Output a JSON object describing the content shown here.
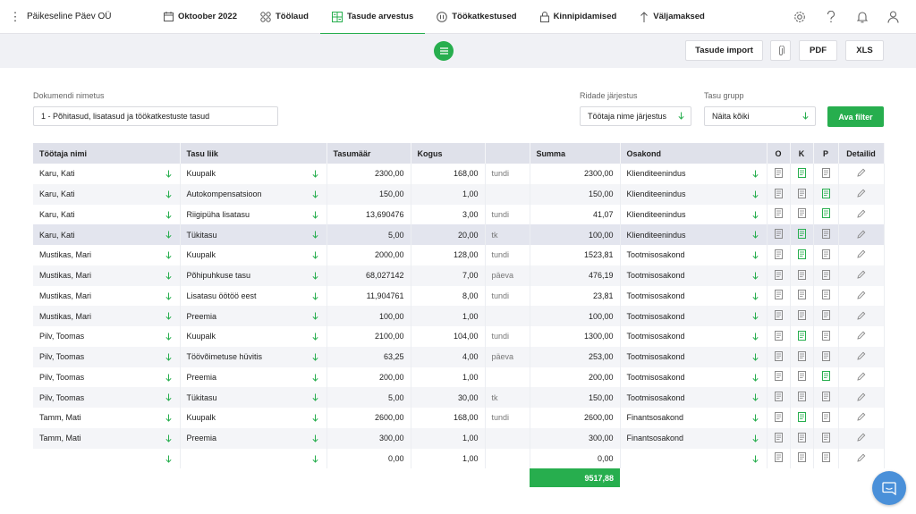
{
  "company": "Päikeseline Päev OÜ",
  "nav": [
    {
      "label": "Oktoober 2022",
      "icon": "calendar-icon"
    },
    {
      "label": "Töölaud",
      "icon": "dashboard-icon"
    },
    {
      "label": "Tasude arvestus",
      "icon": "calculator-icon",
      "active": true
    },
    {
      "label": "Töökatkestused",
      "icon": "pause-icon"
    },
    {
      "label": "Kinnipidamised",
      "icon": "lock-icon"
    },
    {
      "label": "Väljamaksed",
      "icon": "arrow-up-icon"
    }
  ],
  "top_icons": [
    "gear-icon",
    "help-icon",
    "bell-icon",
    "user-icon"
  ],
  "toolbar": {
    "import_label": "Tasude import",
    "pdf_label": "PDF",
    "xls_label": "XLS"
  },
  "filters": {
    "doc_name_label": "Dokumendi nimetus",
    "doc_name_value": "1 - Põhitasud, lisatasud ja töökatkestuste tasud",
    "order_label": "Ridade järjestus",
    "order_value": "Töötaja nime järjestus",
    "group_label": "Tasu grupp",
    "group_value": "Näita kõiki",
    "filter_button": "Ava filter"
  },
  "table": {
    "headers": {
      "employee": "Töötaja nimi",
      "type": "Tasu liik",
      "rate": "Tasumäär",
      "qty": "Kogus",
      "unit": "",
      "sum": "Summa",
      "dept": "Osakond",
      "o": "O",
      "k": "K",
      "p": "P",
      "details": "Detailid"
    },
    "rows": [
      {
        "employee": "Karu, Kati",
        "type": "Kuupalk",
        "rate": "2300,00",
        "qty": "168,00",
        "unit": "tundi",
        "sum": "2300,00",
        "dept": "Klienditeenindus",
        "o": false,
        "k": true,
        "p": false
      },
      {
        "employee": "Karu, Kati",
        "type": "Autokompensatsioon",
        "rate": "150,00",
        "qty": "1,00",
        "unit": "",
        "sum": "150,00",
        "dept": "Klienditeenindus",
        "o": false,
        "k": false,
        "p": true
      },
      {
        "employee": "Karu, Kati",
        "type": "Riigipüha lisatasu",
        "rate": "13,690476",
        "qty": "3,00",
        "unit": "tundi",
        "sum": "41,07",
        "dept": "Klienditeenindus",
        "o": false,
        "k": false,
        "p": true
      },
      {
        "employee": "Karu, Kati",
        "type": "Tükitasu",
        "rate": "5,00",
        "qty": "20,00",
        "unit": "tk",
        "sum": "100,00",
        "dept": "Klienditeenindus",
        "o": false,
        "k": true,
        "p": false,
        "selected": true
      },
      {
        "employee": "Mustikas, Mari",
        "type": "Kuupalk",
        "rate": "2000,00",
        "qty": "128,00",
        "unit": "tundi",
        "sum": "1523,81",
        "dept": "Tootmisosakond",
        "o": false,
        "k": true,
        "p": false
      },
      {
        "employee": "Mustikas, Mari",
        "type": "Põhipuhkuse tasu",
        "rate": "68,027142",
        "qty": "7,00",
        "unit": "päeva",
        "sum": "476,19",
        "dept": "Tootmisosakond",
        "o": false,
        "k": false,
        "p": false
      },
      {
        "employee": "Mustikas, Mari",
        "type": "Lisatasu öötöö eest",
        "rate": "11,904761",
        "qty": "8,00",
        "unit": "tundi",
        "sum": "23,81",
        "dept": "Tootmisosakond",
        "o": false,
        "k": false,
        "p": false
      },
      {
        "employee": "Mustikas, Mari",
        "type": "Preemia",
        "rate": "100,00",
        "qty": "1,00",
        "unit": "",
        "sum": "100,00",
        "dept": "Tootmisosakond",
        "o": false,
        "k": false,
        "p": false
      },
      {
        "employee": "Pilv, Toomas",
        "type": "Kuupalk",
        "rate": "2100,00",
        "qty": "104,00",
        "unit": "tundi",
        "sum": "1300,00",
        "dept": "Tootmisosakond",
        "o": false,
        "k": true,
        "p": false
      },
      {
        "employee": "Pilv, Toomas",
        "type": "Töövõimetuse hüvitis",
        "rate": "63,25",
        "qty": "4,00",
        "unit": "päeva",
        "sum": "253,00",
        "dept": "Tootmisosakond",
        "o": false,
        "k": false,
        "p": false
      },
      {
        "employee": "Pilv, Toomas",
        "type": "Preemia",
        "rate": "200,00",
        "qty": "1,00",
        "unit": "",
        "sum": "200,00",
        "dept": "Tootmisosakond",
        "o": false,
        "k": false,
        "p": true
      },
      {
        "employee": "Pilv, Toomas",
        "type": "Tükitasu",
        "rate": "5,00",
        "qty": "30,00",
        "unit": "tk",
        "sum": "150,00",
        "dept": "Tootmisosakond",
        "o": false,
        "k": false,
        "p": false
      },
      {
        "employee": "Tamm, Mati",
        "type": "Kuupalk",
        "rate": "2600,00",
        "qty": "168,00",
        "unit": "tundi",
        "sum": "2600,00",
        "dept": "Finantsosakond",
        "o": false,
        "k": true,
        "p": false
      },
      {
        "employee": "Tamm, Mati",
        "type": "Preemia",
        "rate": "300,00",
        "qty": "1,00",
        "unit": "",
        "sum": "300,00",
        "dept": "Finantsosakond",
        "o": false,
        "k": false,
        "p": false
      },
      {
        "employee": "",
        "type": "",
        "rate": "0,00",
        "qty": "1,00",
        "unit": "",
        "sum": "0,00",
        "dept": "",
        "o": false,
        "k": false,
        "p": false
      }
    ],
    "total": "9517,88"
  },
  "colors": {
    "accent": "#27ae4e",
    "header_bg": "#dfe1ea",
    "chat": "#4a90d9"
  }
}
